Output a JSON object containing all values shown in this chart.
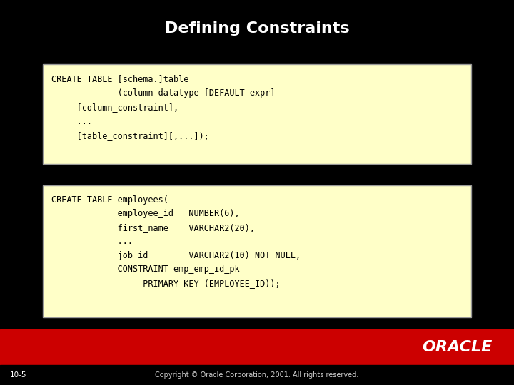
{
  "title": "Defining Constraints",
  "title_color": "#FFFFFF",
  "title_fontsize": 16,
  "background_color": "#000000",
  "box_bg_color": "#FFFFC8",
  "box_edge_color": "#999999",
  "code_color": "#000000",
  "code_fontsize": 8.5,
  "footer_bar_color": "#CC0000",
  "footer_text": "Copyright © Oracle Corporation, 2001. All rights reserved.",
  "footer_label": "10-5",
  "oracle_text": "ORACLE",
  "box1_lines": [
    "CREATE TABLE [schema.]table",
    "             (column datatype [DEFAULT expr]",
    "     [column_constraint],",
    "     ...",
    "     [table_constraint][,...]);"
  ],
  "box2_lines": [
    "CREATE TABLE employees(",
    "             employee_id   NUMBER(6),",
    "             first_name    VARCHAR2(20),",
    "             ...",
    "             job_id        VARCHAR2(10) NOT NULL,",
    "             CONSTRAINT emp_emp_id_pk",
    "                  PRIMARY KEY (EMPLOYEE_ID));"
  ]
}
